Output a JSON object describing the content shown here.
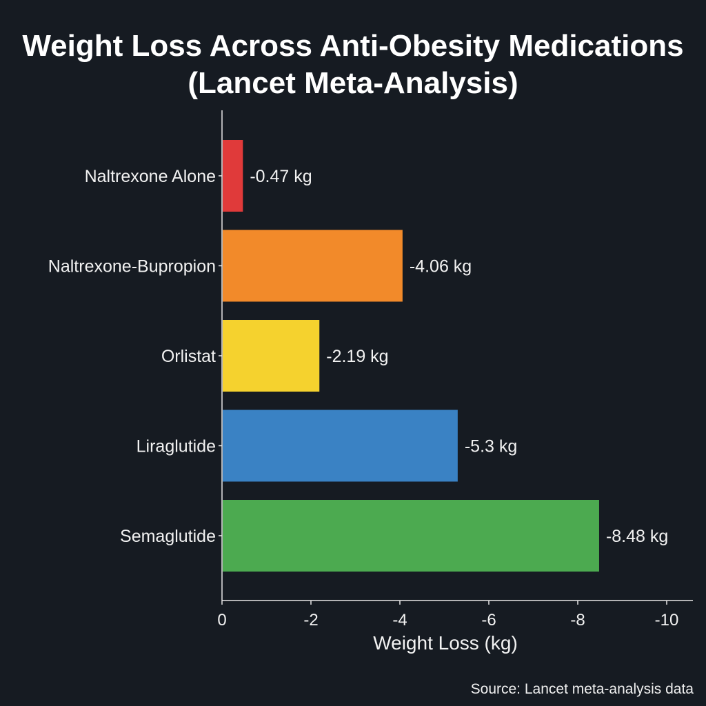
{
  "chart_data": {
    "type": "bar",
    "orientation": "horizontal",
    "title": "Weight Loss Across Anti-Obesity Medications (Lancet Meta-Analysis)",
    "xlabel": "Weight Loss (kg)",
    "ylabel": "",
    "source": "Source: Lancet meta-analysis data",
    "categories": [
      "Naltrexone Alone",
      "Naltrexone-Bupropion",
      "Orlistat",
      "Liraglutide",
      "Semaglutide"
    ],
    "values": [
      -0.47,
      -4.06,
      -2.19,
      -5.3,
      -8.48
    ],
    "data_labels": [
      "-0.47 kg",
      "-4.06 kg",
      "-2.19 kg",
      "-5.3 kg",
      "-8.48 kg"
    ],
    "colors": [
      "#e03a3a",
      "#f28a2a",
      "#f5d22e",
      "#3a82c4",
      "#4caa50"
    ],
    "xlim": [
      0,
      -10.6
    ],
    "xticks": [
      0,
      -2,
      -4,
      -6,
      -8,
      -10
    ],
    "xtick_labels": [
      "0",
      "-2",
      "-4",
      "-6",
      "-8",
      "-10"
    ],
    "grid": false,
    "background": "#161b22"
  }
}
